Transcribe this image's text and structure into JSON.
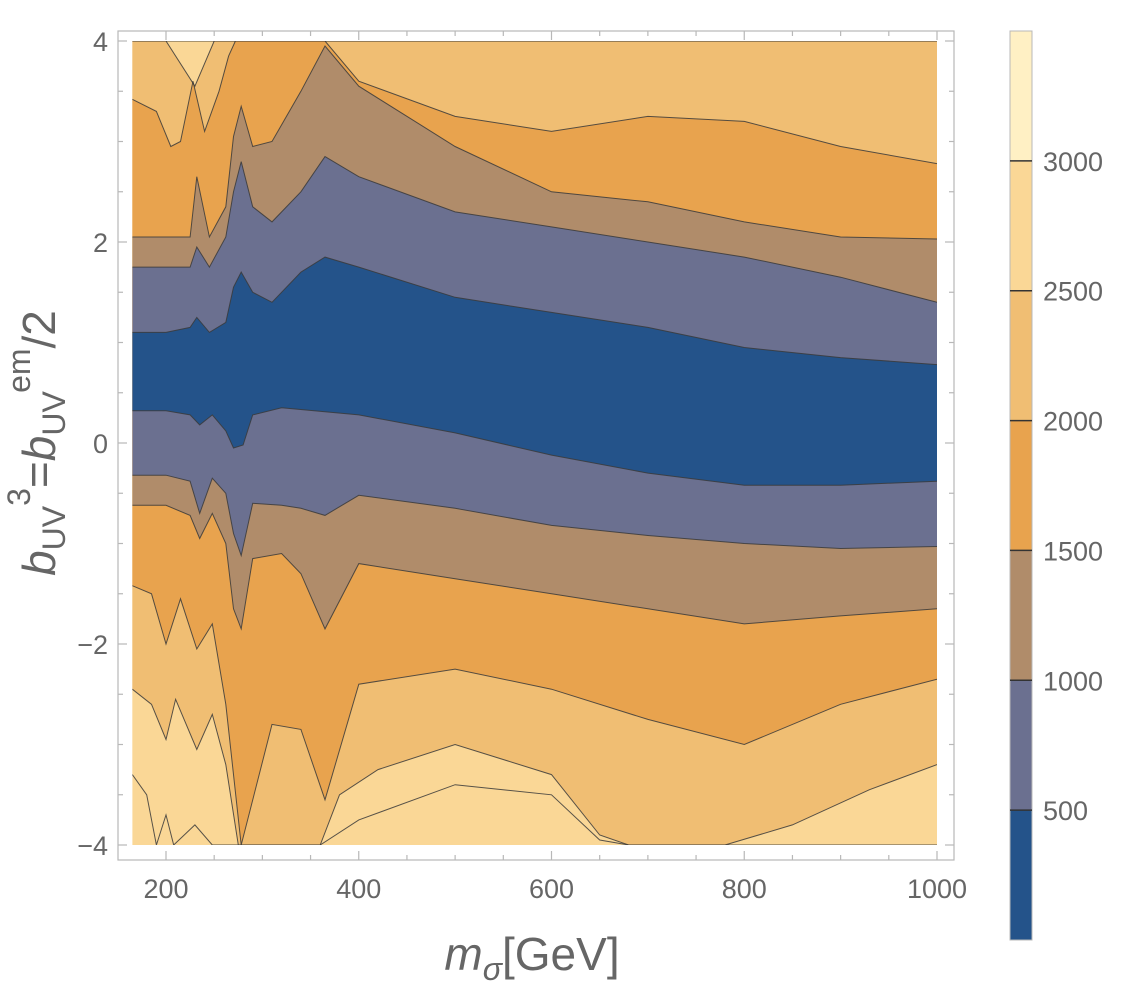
{
  "chart_data": {
    "type": "contour",
    "title": "",
    "xlabel": "m_σ[GeV]",
    "xlabel_parts": {
      "main": "m",
      "sub": "σ",
      "unit": "[GeV]"
    },
    "ylabel": "b_UV^3=b_UV^em/2",
    "ylabel_parts": {
      "b1": "b",
      "sub1": "UV",
      "sup1": "3",
      "eq": "=",
      "b2": "b",
      "sub2": "UV",
      "sup2": "em",
      "tail": "/2"
    },
    "xlim": [
      165,
      1000
    ],
    "ylim": [
      -4,
      4
    ],
    "x_ticks": [
      200,
      400,
      600,
      800,
      1000
    ],
    "y_ticks": [
      -4,
      -2,
      0,
      2,
      4
    ],
    "y_tick_labels": [
      "−4",
      "−2",
      "0",
      "2",
      "4"
    ],
    "colorbar": {
      "range": [
        0,
        3500
      ],
      "ticks": [
        500,
        1000,
        1500,
        2000,
        2500,
        3000
      ],
      "tick_labels": [
        "500",
        "1000",
        "1500",
        "2000",
        "2500",
        "3000"
      ]
    },
    "levels": [
      {
        "lo": 0,
        "hi": 500,
        "color": "#24538a"
      },
      {
        "lo": 500,
        "hi": 1000,
        "color": "#6b7090"
      },
      {
        "lo": 1000,
        "hi": 1500,
        "color": "#b08c6a"
      },
      {
        "lo": 1500,
        "hi": 2000,
        "color": "#e8a34e"
      },
      {
        "lo": 2000,
        "hi": 2500,
        "color": "#f0be73"
      },
      {
        "lo": 2500,
        "hi": 3000,
        "color": "#fad796"
      },
      {
        "lo": 3000,
        "hi": 3500,
        "color": "#fff0c4"
      }
    ],
    "contour_boundaries": [
      {
        "level": 500,
        "upper": [
          [
            165,
            1.1
          ],
          [
            200,
            1.1
          ],
          [
            225,
            1.15
          ],
          [
            232,
            1.25
          ],
          [
            245,
            1.1
          ],
          [
            262,
            1.2
          ],
          [
            270,
            1.55
          ],
          [
            278,
            1.7
          ],
          [
            290,
            1.5
          ],
          [
            310,
            1.4
          ],
          [
            340,
            1.7
          ],
          [
            365,
            1.85
          ],
          [
            400,
            1.75
          ],
          [
            500,
            1.45
          ],
          [
            600,
            1.3
          ],
          [
            700,
            1.15
          ],
          [
            800,
            0.95
          ],
          [
            900,
            0.85
          ],
          [
            1000,
            0.78
          ]
        ],
        "lower": [
          [
            165,
            0.32
          ],
          [
            200,
            0.32
          ],
          [
            225,
            0.28
          ],
          [
            235,
            0.18
          ],
          [
            248,
            0.28
          ],
          [
            262,
            0.12
          ],
          [
            270,
            -0.05
          ],
          [
            280,
            -0.02
          ],
          [
            290,
            0.28
          ],
          [
            320,
            0.35
          ],
          [
            400,
            0.28
          ],
          [
            500,
            0.1
          ],
          [
            600,
            -0.12
          ],
          [
            700,
            -0.3
          ],
          [
            800,
            -0.42
          ],
          [
            900,
            -0.42
          ],
          [
            1000,
            -0.38
          ]
        ]
      },
      {
        "level": 1000,
        "upper": [
          [
            165,
            1.75
          ],
          [
            200,
            1.75
          ],
          [
            225,
            1.75
          ],
          [
            232,
            1.95
          ],
          [
            245,
            1.75
          ],
          [
            262,
            2.05
          ],
          [
            270,
            2.5
          ],
          [
            278,
            2.8
          ],
          [
            290,
            2.35
          ],
          [
            310,
            2.2
          ],
          [
            340,
            2.5
          ],
          [
            365,
            2.85
          ],
          [
            400,
            2.65
          ],
          [
            500,
            2.3
          ],
          [
            600,
            2.15
          ],
          [
            700,
            2.0
          ],
          [
            800,
            1.85
          ],
          [
            900,
            1.65
          ],
          [
            1000,
            1.4
          ]
        ],
        "lower": [
          [
            165,
            -0.32
          ],
          [
            200,
            -0.32
          ],
          [
            225,
            -0.38
          ],
          [
            235,
            -0.7
          ],
          [
            248,
            -0.35
          ],
          [
            262,
            -0.5
          ],
          [
            270,
            -0.9
          ],
          [
            278,
            -1.12
          ],
          [
            290,
            -0.6
          ],
          [
            320,
            -0.62
          ],
          [
            340,
            -0.65
          ],
          [
            365,
            -0.72
          ],
          [
            400,
            -0.52
          ],
          [
            500,
            -0.65
          ],
          [
            600,
            -0.82
          ],
          [
            700,
            -0.92
          ],
          [
            800,
            -1.0
          ],
          [
            900,
            -1.05
          ],
          [
            1000,
            -1.03
          ]
        ]
      },
      {
        "level": 1500,
        "upper": [
          [
            165,
            2.05
          ],
          [
            200,
            2.05
          ],
          [
            225,
            2.05
          ],
          [
            232,
            2.65
          ],
          [
            245,
            2.05
          ],
          [
            262,
            2.35
          ],
          [
            270,
            3.05
          ],
          [
            278,
            3.35
          ],
          [
            290,
            2.95
          ],
          [
            310,
            3.0
          ],
          [
            340,
            3.5
          ],
          [
            365,
            3.95
          ],
          [
            400,
            3.55
          ],
          [
            500,
            2.95
          ],
          [
            600,
            2.5
          ],
          [
            700,
            2.4
          ],
          [
            800,
            2.2
          ],
          [
            900,
            2.05
          ],
          [
            1000,
            2.03
          ]
        ],
        "lower": [
          [
            165,
            -0.62
          ],
          [
            200,
            -0.62
          ],
          [
            225,
            -0.72
          ],
          [
            235,
            -0.95
          ],
          [
            248,
            -0.7
          ],
          [
            262,
            -1.0
          ],
          [
            270,
            -1.65
          ],
          [
            278,
            -1.85
          ],
          [
            290,
            -1.15
          ],
          [
            320,
            -1.1
          ],
          [
            340,
            -1.3
          ],
          [
            365,
            -1.85
          ],
          [
            400,
            -1.2
          ],
          [
            500,
            -1.35
          ],
          [
            600,
            -1.5
          ],
          [
            700,
            -1.65
          ],
          [
            800,
            -1.8
          ],
          [
            900,
            -1.72
          ],
          [
            1000,
            -1.65
          ]
        ]
      },
      {
        "level": 2000,
        "upper": [
          [
            165,
            3.42
          ],
          [
            190,
            3.3
          ],
          [
            205,
            2.95
          ],
          [
            215,
            3.0
          ],
          [
            228,
            3.6
          ],
          [
            240,
            3.1
          ],
          [
            255,
            3.5
          ],
          [
            265,
            3.85
          ],
          [
            272,
            4.0
          ],
          [
            365,
            4.0
          ],
          [
            400,
            3.6
          ],
          [
            500,
            3.25
          ],
          [
            600,
            3.1
          ],
          [
            700,
            3.25
          ],
          [
            800,
            3.2
          ],
          [
            900,
            2.95
          ],
          [
            1000,
            2.78
          ]
        ],
        "lower": [
          [
            165,
            -1.42
          ],
          [
            185,
            -1.5
          ],
          [
            200,
            -2.0
          ],
          [
            215,
            -1.55
          ],
          [
            232,
            -2.05
          ],
          [
            248,
            -1.8
          ],
          [
            262,
            -2.6
          ],
          [
            270,
            -3.3
          ],
          [
            278,
            -4.0
          ],
          [
            310,
            -2.8
          ],
          [
            340,
            -2.85
          ],
          [
            365,
            -3.55
          ],
          [
            400,
            -2.4
          ],
          [
            500,
            -2.25
          ],
          [
            600,
            -2.45
          ],
          [
            700,
            -2.75
          ],
          [
            800,
            -3.0
          ],
          [
            900,
            -2.6
          ],
          [
            1000,
            -2.35
          ]
        ]
      },
      {
        "level": 2500,
        "upper": [
          [
            165,
            4.0
          ],
          [
            200,
            4.0
          ],
          [
            230,
            3.55
          ],
          [
            250,
            4.0
          ],
          [
            1000,
            4.0
          ]
        ],
        "lower": [
          [
            165,
            -2.45
          ],
          [
            185,
            -2.6
          ],
          [
            200,
            -2.95
          ],
          [
            210,
            -2.55
          ],
          [
            232,
            -3.05
          ],
          [
            248,
            -2.7
          ],
          [
            262,
            -3.2
          ],
          [
            275,
            -4.0
          ],
          [
            360,
            -4.0
          ],
          [
            380,
            -3.5
          ],
          [
            420,
            -3.25
          ],
          [
            500,
            -3.0
          ],
          [
            600,
            -3.3
          ],
          [
            650,
            -3.9
          ],
          [
            680,
            -4.0
          ],
          [
            780,
            -4.0
          ],
          [
            850,
            -3.8
          ],
          [
            930,
            -3.45
          ],
          [
            1000,
            -3.2
          ]
        ]
      },
      {
        "level": 3000,
        "upper": [
          [
            165,
            4.0
          ],
          [
            1000,
            4.0
          ]
        ],
        "lower": [
          [
            165,
            -3.3
          ],
          [
            180,
            -3.5
          ],
          [
            190,
            -4.0
          ],
          [
            200,
            -3.7
          ],
          [
            208,
            -4.0
          ],
          [
            230,
            -3.8
          ],
          [
            248,
            -4.0
          ],
          [
            360,
            -4.0
          ],
          [
            400,
            -3.75
          ],
          [
            500,
            -3.4
          ],
          [
            600,
            -3.5
          ],
          [
            650,
            -3.95
          ],
          [
            680,
            -4.0
          ],
          [
            1000,
            -4.0
          ]
        ]
      }
    ]
  }
}
